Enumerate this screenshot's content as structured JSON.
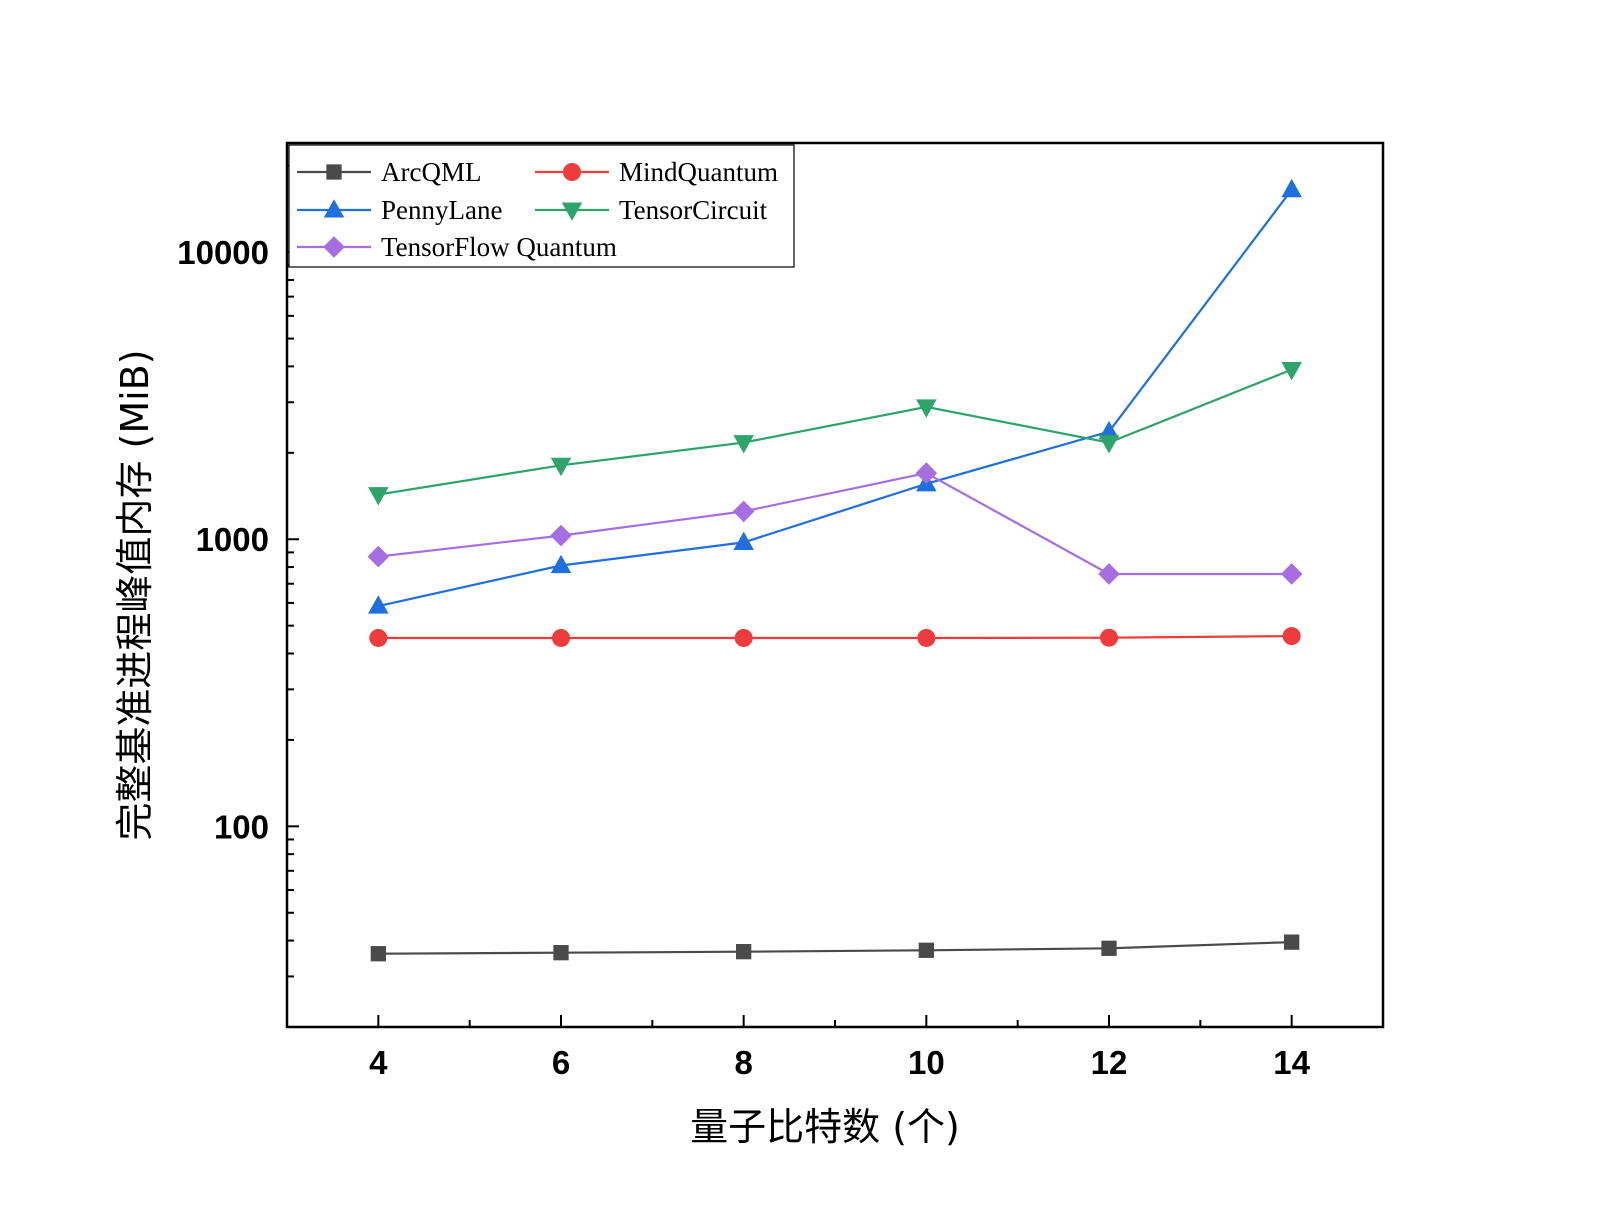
{
  "chart_data": {
    "type": "line",
    "xlabel": "量子比特数 (个)",
    "ylabel": "完整基准进程峰值内存 (MiB)",
    "x": [
      4,
      6,
      8,
      10,
      12,
      14
    ],
    "xlim": [
      3,
      15
    ],
    "x_ticks": [
      4,
      6,
      8,
      10,
      12,
      14
    ],
    "y_scale": "log",
    "ylim": [
      20,
      24000
    ],
    "y_ticks": [
      100,
      1000,
      10000
    ],
    "legend_position": "top-left",
    "grid": false,
    "series": [
      {
        "name": "ArcQML",
        "marker": "square",
        "color": "#4a4a4a",
        "values": [
          36,
          36.3,
          36.6,
          37,
          37.6,
          39.5
        ]
      },
      {
        "name": "MindQuantum",
        "marker": "circle",
        "color": "#ee3b3b",
        "values": [
          453,
          453,
          453,
          453,
          454,
          460
        ]
      },
      {
        "name": "PennyLane",
        "marker": "triangle-up",
        "color": "#1f6fde",
        "values": [
          585,
          810,
          975,
          1560,
          2370,
          16500
        ]
      },
      {
        "name": "TensorCircuit",
        "marker": "triangle-down",
        "color": "#2ea36a",
        "values": [
          1430,
          1810,
          2170,
          2890,
          2170,
          3900
        ]
      },
      {
        "name": "TensorFlow Quantum",
        "marker": "diamond",
        "color": "#a66ee0",
        "values": [
          870,
          1030,
          1250,
          1700,
          757,
          757
        ]
      }
    ]
  }
}
